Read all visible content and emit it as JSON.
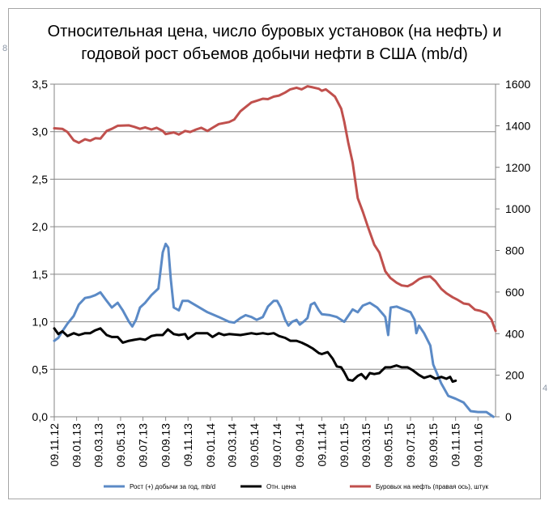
{
  "chart_data": {
    "type": "line",
    "title_line1": "Относительная цена, число буровых установок (на нефть) и",
    "title_line2": "годовой рост объемов добычи нефти в США (mb/d)",
    "x_ticks": [
      "09.11.12",
      "09.01.13",
      "09.03.13",
      "09.05.13",
      "09.07.13",
      "09.09.13",
      "09.11.13",
      "09.01.14",
      "09.03.14",
      "09.05.14",
      "09.07.14",
      "09.09.14",
      "09.11.14",
      "09.01.15",
      "09.03.15",
      "09.05.15",
      "09.07.15",
      "09.09.15",
      "09.11.15",
      "09.01.16"
    ],
    "x_range": [
      "09.11.12",
      "26.02.16"
    ],
    "left_axis": {
      "ylim": [
        0,
        3.5
      ],
      "ticks": [
        "0,0",
        "0,5",
        "1,0",
        "1,5",
        "2,0",
        "2,5",
        "3,0",
        "3,5"
      ]
    },
    "right_axis": {
      "ylim": [
        0,
        1600
      ],
      "ticks": [
        "0",
        "200",
        "400",
        "600",
        "800",
        "1000",
        "1200",
        "1400",
        "1600"
      ]
    },
    "grid": "horizontal",
    "legend_position": "bottom",
    "colors": {
      "growth": "#5b8ac6",
      "price": "#000000",
      "rigs": "#c0504d",
      "grid": "#868686",
      "axis": "#868686"
    },
    "series": [
      {
        "name": "Рост (+) добычи за год, mb/d",
        "axis": "left",
        "points": [
          [
            "09.11.12",
            0.8
          ],
          [
            "20.11.12",
            0.83
          ],
          [
            "01.12.12",
            0.9
          ],
          [
            "15.12.12",
            0.98
          ],
          [
            "01.01.13",
            1.06
          ],
          [
            "15.01.13",
            1.18
          ],
          [
            "01.02.13",
            1.25
          ],
          [
            "15.02.13",
            1.26
          ],
          [
            "01.03.13",
            1.28
          ],
          [
            "15.03.13",
            1.31
          ],
          [
            "01.04.13",
            1.22
          ],
          [
            "15.04.13",
            1.15
          ],
          [
            "01.05.13",
            1.2
          ],
          [
            "15.05.13",
            1.12
          ],
          [
            "01.06.13",
            1.0
          ],
          [
            "10.06.13",
            0.95
          ],
          [
            "20.06.13",
            1.02
          ],
          [
            "01.07.13",
            1.15
          ],
          [
            "15.07.13",
            1.2
          ],
          [
            "01.08.13",
            1.28
          ],
          [
            "20.08.13",
            1.35
          ],
          [
            "01.09.13",
            1.73
          ],
          [
            "09.09.13",
            1.82
          ],
          [
            "16.09.13",
            1.78
          ],
          [
            "23.09.13",
            1.45
          ],
          [
            "01.10.13",
            1.15
          ],
          [
            "15.10.13",
            1.12
          ],
          [
            "25.10.13",
            1.22
          ],
          [
            "09.11.13",
            1.22
          ],
          [
            "01.12.13",
            1.17
          ],
          [
            "01.01.14",
            1.1
          ],
          [
            "01.02.14",
            1.05
          ],
          [
            "01.03.14",
            1.0
          ],
          [
            "15.03.14",
            0.99
          ],
          [
            "01.04.14",
            1.04
          ],
          [
            "15.04.14",
            1.07
          ],
          [
            "01.05.14",
            1.05
          ],
          [
            "15.05.14",
            1.02
          ],
          [
            "01.06.14",
            1.05
          ],
          [
            "15.06.14",
            1.16
          ],
          [
            "01.07.14",
            1.22
          ],
          [
            "10.07.14",
            1.22
          ],
          [
            "20.07.14",
            1.15
          ],
          [
            "01.08.14",
            1.02
          ],
          [
            "10.08.14",
            0.96
          ],
          [
            "20.08.14",
            1.0
          ],
          [
            "01.09.14",
            1.02
          ],
          [
            "10.09.14",
            0.97
          ],
          [
            "20.09.14",
            1.0
          ],
          [
            "01.10.14",
            1.04
          ],
          [
            "10.10.14",
            1.18
          ],
          [
            "20.10.14",
            1.2
          ],
          [
            "01.11.14",
            1.12
          ],
          [
            "09.11.14",
            1.08
          ],
          [
            "01.12.14",
            1.07
          ],
          [
            "20.12.14",
            1.05
          ],
          [
            "09.01.15",
            1.0
          ],
          [
            "01.02.15",
            1.13
          ],
          [
            "15.02.15",
            1.1
          ],
          [
            "01.03.15",
            1.17
          ],
          [
            "20.03.15",
            1.2
          ],
          [
            "09.04.15",
            1.15
          ],
          [
            "25.04.15",
            1.08
          ],
          [
            "01.05.15",
            1.05
          ],
          [
            "09.05.15",
            0.86
          ],
          [
            "16.05.15",
            1.15
          ],
          [
            "01.06.15",
            1.16
          ],
          [
            "20.06.15",
            1.13
          ],
          [
            "09.07.15",
            1.1
          ],
          [
            "20.07.15",
            1.02
          ],
          [
            "25.07.15",
            0.88
          ],
          [
            "01.08.15",
            0.96
          ],
          [
            "15.08.15",
            0.88
          ],
          [
            "01.09.15",
            0.75
          ],
          [
            "09.09.15",
            0.55
          ],
          [
            "01.10.15",
            0.35
          ],
          [
            "20.10.15",
            0.22
          ],
          [
            "09.11.15",
            0.19
          ],
          [
            "01.12.15",
            0.15
          ],
          [
            "20.12.15",
            0.06
          ],
          [
            "09.01.16",
            0.05
          ],
          [
            "01.02.16",
            0.05
          ],
          [
            "20.02.16",
            0.0
          ]
        ]
      },
      {
        "name": "Отн. цена",
        "axis": "left",
        "points": [
          [
            "09.11.12",
            0.93
          ],
          [
            "20.11.12",
            0.87
          ],
          [
            "01.12.12",
            0.9
          ],
          [
            "15.12.12",
            0.85
          ],
          [
            "01.01.13",
            0.88
          ],
          [
            "15.01.13",
            0.86
          ],
          [
            "01.02.13",
            0.88
          ],
          [
            "15.02.13",
            0.88
          ],
          [
            "01.03.13",
            0.91
          ],
          [
            "15.03.13",
            0.93
          ],
          [
            "01.04.13",
            0.86
          ],
          [
            "15.04.13",
            0.84
          ],
          [
            "01.05.13",
            0.84
          ],
          [
            "15.05.13",
            0.78
          ],
          [
            "01.06.13",
            0.8
          ],
          [
            "15.06.13",
            0.81
          ],
          [
            "01.07.13",
            0.82
          ],
          [
            "15.07.13",
            0.81
          ],
          [
            "01.08.13",
            0.85
          ],
          [
            "15.08.13",
            0.86
          ],
          [
            "01.09.13",
            0.86
          ],
          [
            "15.09.13",
            0.92
          ],
          [
            "01.10.13",
            0.87
          ],
          [
            "15.10.13",
            0.86
          ],
          [
            "01.11.13",
            0.87
          ],
          [
            "09.11.13",
            0.82
          ],
          [
            "01.12.13",
            0.88
          ],
          [
            "01.01.14",
            0.88
          ],
          [
            "15.01.14",
            0.84
          ],
          [
            "01.02.14",
            0.88
          ],
          [
            "15.02.14",
            0.86
          ],
          [
            "01.03.14",
            0.87
          ],
          [
            "01.04.14",
            0.86
          ],
          [
            "01.05.14",
            0.88
          ],
          [
            "15.05.14",
            0.87
          ],
          [
            "01.06.14",
            0.88
          ],
          [
            "15.06.14",
            0.87
          ],
          [
            "01.07.14",
            0.88
          ],
          [
            "15.07.14",
            0.85
          ],
          [
            "01.08.14",
            0.83
          ],
          [
            "15.08.14",
            0.8
          ],
          [
            "01.09.14",
            0.8
          ],
          [
            "15.09.14",
            0.78
          ],
          [
            "01.10.14",
            0.75
          ],
          [
            "15.10.14",
            0.72
          ],
          [
            "01.11.14",
            0.67
          ],
          [
            "09.11.14",
            0.66
          ],
          [
            "25.11.14",
            0.68
          ],
          [
            "09.12.14",
            0.61
          ],
          [
            "20.12.14",
            0.53
          ],
          [
            "01.01.15",
            0.52
          ],
          [
            "09.01.15",
            0.47
          ],
          [
            "20.01.15",
            0.39
          ],
          [
            "01.02.15",
            0.38
          ],
          [
            "15.02.15",
            0.43
          ],
          [
            "25.02.15",
            0.45
          ],
          [
            "09.03.15",
            0.4
          ],
          [
            "20.03.15",
            0.46
          ],
          [
            "01.04.15",
            0.45
          ],
          [
            "15.04.15",
            0.46
          ],
          [
            "01.05.15",
            0.52
          ],
          [
            "15.05.15",
            0.52
          ],
          [
            "01.06.15",
            0.54
          ],
          [
            "15.06.15",
            0.52
          ],
          [
            "01.07.15",
            0.52
          ],
          [
            "15.07.15",
            0.49
          ],
          [
            "01.08.15",
            0.44
          ],
          [
            "15.08.15",
            0.41
          ],
          [
            "01.09.15",
            0.43
          ],
          [
            "15.09.15",
            0.4
          ],
          [
            "01.10.15",
            0.42
          ],
          [
            "15.10.15",
            0.4
          ],
          [
            "25.10.15",
            0.42
          ],
          [
            "01.11.15",
            0.37
          ],
          [
            "09.11.15",
            0.38
          ]
        ]
      },
      {
        "name": "Буровых на нефть (правая ось), штук",
        "axis": "right",
        "points": [
          [
            "09.11.12",
            1388
          ],
          [
            "01.12.12",
            1385
          ],
          [
            "15.12.12",
            1370
          ],
          [
            "01.01.13",
            1330
          ],
          [
            "15.01.13",
            1318
          ],
          [
            "01.02.13",
            1335
          ],
          [
            "15.02.13",
            1328
          ],
          [
            "01.03.13",
            1340
          ],
          [
            "15.03.13",
            1338
          ],
          [
            "01.04.13",
            1375
          ],
          [
            "15.04.13",
            1385
          ],
          [
            "01.05.13",
            1400
          ],
          [
            "01.06.13",
            1402
          ],
          [
            "15.06.13",
            1395
          ],
          [
            "01.07.13",
            1385
          ],
          [
            "15.07.13",
            1392
          ],
          [
            "01.08.13",
            1382
          ],
          [
            "15.08.13",
            1390
          ],
          [
            "01.09.13",
            1375
          ],
          [
            "09.09.13",
            1360
          ],
          [
            "01.10.13",
            1368
          ],
          [
            "15.10.13",
            1358
          ],
          [
            "01.11.13",
            1375
          ],
          [
            "15.11.13",
            1370
          ],
          [
            "01.12.13",
            1382
          ],
          [
            "15.12.13",
            1390
          ],
          [
            "01.01.14",
            1375
          ],
          [
            "15.01.14",
            1390
          ],
          [
            "01.02.14",
            1408
          ],
          [
            "01.03.14",
            1418
          ],
          [
            "15.03.14",
            1430
          ],
          [
            "01.04.14",
            1470
          ],
          [
            "15.04.14",
            1490
          ],
          [
            "01.05.14",
            1512
          ],
          [
            "15.05.14",
            1520
          ],
          [
            "01.06.14",
            1530
          ],
          [
            "15.06.14",
            1528
          ],
          [
            "01.07.14",
            1540
          ],
          [
            "15.07.14",
            1545
          ],
          [
            "01.08.14",
            1560
          ],
          [
            "15.08.14",
            1575
          ],
          [
            "01.09.14",
            1583
          ],
          [
            "15.09.14",
            1575
          ],
          [
            "01.10.14",
            1590
          ],
          [
            "15.10.14",
            1585
          ],
          [
            "01.11.14",
            1578
          ],
          [
            "09.11.14",
            1568
          ],
          [
            "20.11.14",
            1575
          ],
          [
            "01.12.14",
            1560
          ],
          [
            "15.12.14",
            1540
          ],
          [
            "01.01.15",
            1482
          ],
          [
            "09.01.15",
            1420
          ],
          [
            "20.01.15",
            1320
          ],
          [
            "01.02.15",
            1223
          ],
          [
            "15.02.15",
            1052
          ],
          [
            "01.03.15",
            986
          ],
          [
            "15.03.15",
            912
          ],
          [
            "01.04.15",
            828
          ],
          [
            "15.04.15",
            790
          ],
          [
            "01.05.15",
            700
          ],
          [
            "15.05.15",
            668
          ],
          [
            "01.06.15",
            645
          ],
          [
            "15.06.15",
            632
          ],
          [
            "01.07.15",
            628
          ],
          [
            "15.07.15",
            640
          ],
          [
            "01.08.15",
            662
          ],
          [
            "15.08.15",
            672
          ],
          [
            "01.09.15",
            675
          ],
          [
            "15.09.15",
            652
          ],
          [
            "01.10.15",
            615
          ],
          [
            "15.10.15",
            594
          ],
          [
            "01.11.15",
            575
          ],
          [
            "15.11.15",
            562
          ],
          [
            "01.12.15",
            545
          ],
          [
            "15.12.15",
            541
          ],
          [
            "01.01.16",
            515
          ],
          [
            "15.01.16",
            510
          ],
          [
            "01.02.16",
            498
          ],
          [
            "15.02.16",
            467
          ],
          [
            "26.02.16",
            413
          ]
        ]
      }
    ]
  }
}
